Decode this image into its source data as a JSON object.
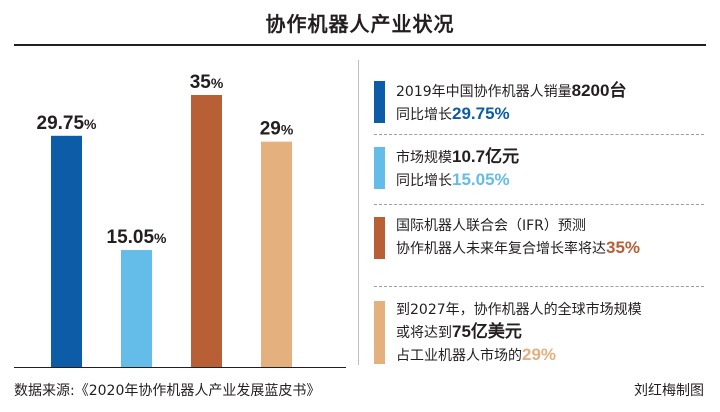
{
  "title": "协作机器人产业状况",
  "chart_data": {
    "type": "bar",
    "categories": [
      "",
      "",
      "",
      ""
    ],
    "values": [
      29.75,
      15.05,
      35,
      29
    ],
    "value_labels": [
      "29.75",
      "15.05",
      "35",
      "29"
    ],
    "unit": "%",
    "colors": [
      "#0d5ca8",
      "#64bce8",
      "#b95f35",
      "#e4b07e"
    ],
    "ylim": [
      0,
      35
    ],
    "grid": false,
    "legend_position": "right"
  },
  "legend": [
    {
      "color": "#0d5ca8",
      "lines": [
        [
          {
            "t": "2019年中国协作机器人销量",
            "s": ""
          },
          {
            "t": "8200台",
            "s": "dark"
          }
        ],
        [
          {
            "t": "同比增长",
            "s": ""
          },
          {
            "t": "29.75%",
            "s": "color"
          }
        ]
      ]
    },
    {
      "color": "#64bce8",
      "lines": [
        [
          {
            "t": "市场规模",
            "s": ""
          },
          {
            "t": "10.7亿元",
            "s": "dark"
          }
        ],
        [
          {
            "t": "同比增长",
            "s": ""
          },
          {
            "t": "15.05%",
            "s": "color"
          }
        ]
      ]
    },
    {
      "color": "#b95f35",
      "lines": [
        [
          {
            "t": "国际机器人联合会（IFR）预测",
            "s": ""
          }
        ],
        [
          {
            "t": "协作机器人未来年复合增长率将达",
            "s": ""
          },
          {
            "t": "35%",
            "s": "color"
          }
        ]
      ]
    },
    {
      "color": "#e4b07e",
      "lines": [
        [
          {
            "t": "到2027年，协作机器人的全球市场规模",
            "s": ""
          }
        ],
        [
          {
            "t": "或将达到",
            "s": ""
          },
          {
            "t": "75亿美元",
            "s": "dark"
          }
        ],
        [
          {
            "t": "占工业机器人市场的",
            "s": ""
          },
          {
            "t": "29%",
            "s": "color"
          }
        ]
      ]
    }
  ],
  "source": "数据来源:《2020年协作机器人产业发展蓝皮书》",
  "credit": "刘红梅制图"
}
